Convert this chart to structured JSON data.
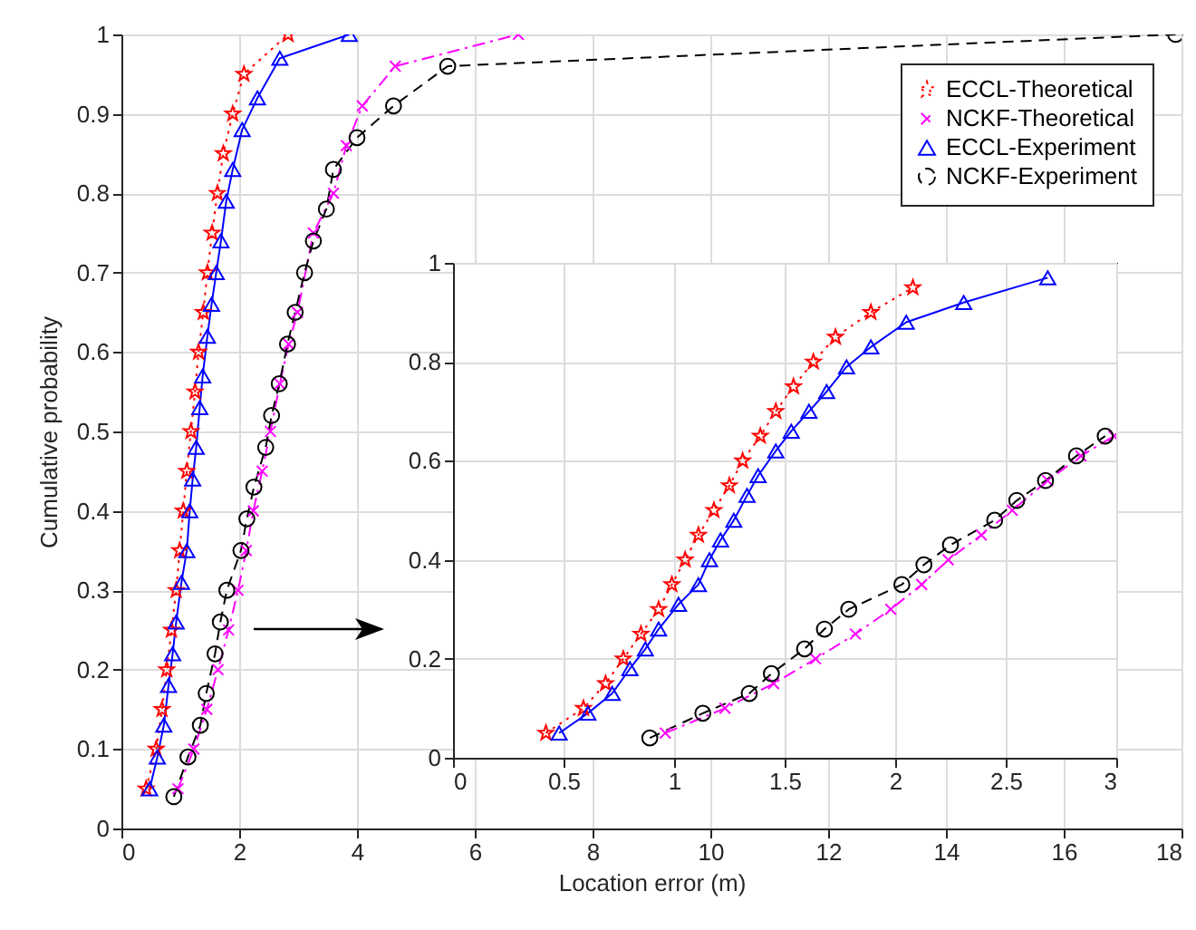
{
  "chart_data": [
    {
      "type": "line",
      "xlabel": "Location error (m)",
      "ylabel": "Cumulative probability",
      "xlim": [
        0,
        18
      ],
      "ylim": [
        0,
        1
      ],
      "xticks": [
        0,
        2,
        4,
        6,
        8,
        10,
        12,
        14,
        16,
        18
      ],
      "yticks": [
        0,
        0.1,
        0.2,
        0.3,
        0.4,
        0.5,
        0.6,
        0.7,
        0.8,
        0.9,
        1
      ],
      "grid": true,
      "legend": "top right",
      "series": [
        {
          "name": "ECCL-Theoretical",
          "color": "#ff0000",
          "marker": "star",
          "line_style": "dotted",
          "x": [
            0.42,
            0.59,
            0.69,
            0.77,
            0.85,
            0.93,
            0.99,
            1.05,
            1.11,
            1.18,
            1.25,
            1.31,
            1.39,
            1.46,
            1.54,
            1.63,
            1.73,
            1.89,
            2.08,
            2.83
          ],
          "values": [
            0.05,
            0.1,
            0.15,
            0.2,
            0.25,
            0.3,
            0.35,
            0.4,
            0.45,
            0.5,
            0.55,
            0.6,
            0.65,
            0.7,
            0.75,
            0.8,
            0.85,
            0.9,
            0.95,
            1
          ]
        },
        {
          "name": "NCKF-Theoretical",
          "color": "#ff00ff",
          "marker": "cross",
          "line_style": "dashdot",
          "x": [
            0.96,
            1.23,
            1.45,
            1.64,
            1.82,
            1.98,
            2.12,
            2.24,
            2.39,
            2.53,
            2.69,
            2.84,
            2.99,
            3.26,
            3.6,
            3.82,
            4.09,
            4.65,
            6.74
          ],
          "values": [
            0.05,
            0.1,
            0.15,
            0.2,
            0.25,
            0.3,
            0.35,
            0.4,
            0.45,
            0.5,
            0.56,
            0.61,
            0.65,
            0.75,
            0.8,
            0.86,
            0.91,
            0.96,
            1
          ]
        },
        {
          "name": "ECCL-Experiment",
          "color": "#0000ff",
          "marker": "triangle",
          "line_style": "solid",
          "x": [
            0.48,
            0.61,
            0.72,
            0.8,
            0.87,
            0.93,
            1.02,
            1.11,
            1.16,
            1.21,
            1.27,
            1.33,
            1.38,
            1.46,
            1.53,
            1.61,
            1.69,
            1.78,
            1.89,
            2.05,
            2.31,
            2.69,
            3.87
          ],
          "values": [
            0.05,
            0.09,
            0.13,
            0.18,
            0.22,
            0.26,
            0.31,
            0.35,
            0.4,
            0.44,
            0.48,
            0.53,
            0.57,
            0.62,
            0.66,
            0.7,
            0.74,
            0.79,
            0.83,
            0.88,
            0.92,
            0.97,
            1
          ]
        },
        {
          "name": "NCKF-Experiment",
          "color": "#000000",
          "marker": "circle",
          "line_style": "dashed",
          "x": [
            0.89,
            1.13,
            1.34,
            1.44,
            1.59,
            1.68,
            1.79,
            2.03,
            2.13,
            2.25,
            2.45,
            2.55,
            2.68,
            2.82,
            2.95,
            3.11,
            3.26,
            3.48,
            3.6,
            4.0,
            4.62,
            5.54,
            17.9
          ],
          "values": [
            0.04,
            0.09,
            0.13,
            0.17,
            0.22,
            0.26,
            0.3,
            0.35,
            0.39,
            0.43,
            0.48,
            0.52,
            0.56,
            0.61,
            0.65,
            0.7,
            0.74,
            0.78,
            0.83,
            0.87,
            0.91,
            0.96,
            1
          ]
        }
      ]
    },
    {
      "type": "line",
      "xlim": [
        0,
        3
      ],
      "ylim": [
        0,
        1
      ],
      "xticks": [
        0,
        0.5,
        1,
        1.5,
        2,
        2.5,
        3
      ],
      "yticks": [
        0,
        0.2,
        0.4,
        0.6,
        0.8,
        1
      ],
      "grid": true,
      "series": [
        {
          "color": "#ff0000",
          "marker": "star",
          "line_style": "dotted",
          "x": [
            0.42,
            0.59,
            0.69,
            0.77,
            0.85,
            0.93,
            0.99,
            1.05,
            1.11,
            1.18,
            1.25,
            1.31,
            1.39,
            1.46,
            1.54,
            1.63,
            1.73,
            1.89,
            2.08
          ],
          "values": [
            0.05,
            0.1,
            0.15,
            0.2,
            0.25,
            0.3,
            0.35,
            0.4,
            0.45,
            0.5,
            0.55,
            0.6,
            0.65,
            0.7,
            0.75,
            0.8,
            0.85,
            0.9,
            0.95
          ]
        },
        {
          "color": "#ff00ff",
          "marker": "cross",
          "line_style": "dashdot",
          "x": [
            0.96,
            1.23,
            1.45,
            1.64,
            1.82,
            1.98,
            2.12,
            2.24,
            2.39,
            2.53,
            2.69,
            2.84,
            2.99
          ],
          "values": [
            0.05,
            0.1,
            0.15,
            0.2,
            0.25,
            0.3,
            0.35,
            0.4,
            0.45,
            0.5,
            0.56,
            0.61,
            0.65
          ]
        },
        {
          "color": "#0000ff",
          "marker": "triangle",
          "line_style": "solid",
          "x": [
            0.48,
            0.61,
            0.72,
            0.8,
            0.87,
            0.93,
            1.02,
            1.11,
            1.16,
            1.21,
            1.27,
            1.33,
            1.38,
            1.46,
            1.53,
            1.61,
            1.69,
            1.78,
            1.89,
            2.05,
            2.31,
            2.69
          ],
          "values": [
            0.05,
            0.09,
            0.13,
            0.18,
            0.22,
            0.26,
            0.31,
            0.35,
            0.4,
            0.44,
            0.48,
            0.53,
            0.57,
            0.62,
            0.66,
            0.7,
            0.74,
            0.79,
            0.83,
            0.88,
            0.92,
            0.97
          ]
        },
        {
          "color": "#000000",
          "marker": "circle",
          "line_style": "dashed",
          "x": [
            0.89,
            1.13,
            1.34,
            1.44,
            1.59,
            1.68,
            1.79,
            2.03,
            2.13,
            2.25,
            2.45,
            2.55,
            2.68,
            2.82,
            2.95
          ],
          "values": [
            0.04,
            0.09,
            0.13,
            0.17,
            0.22,
            0.26,
            0.3,
            0.35,
            0.39,
            0.43,
            0.48,
            0.52,
            0.56,
            0.61,
            0.65
          ]
        }
      ]
    }
  ]
}
